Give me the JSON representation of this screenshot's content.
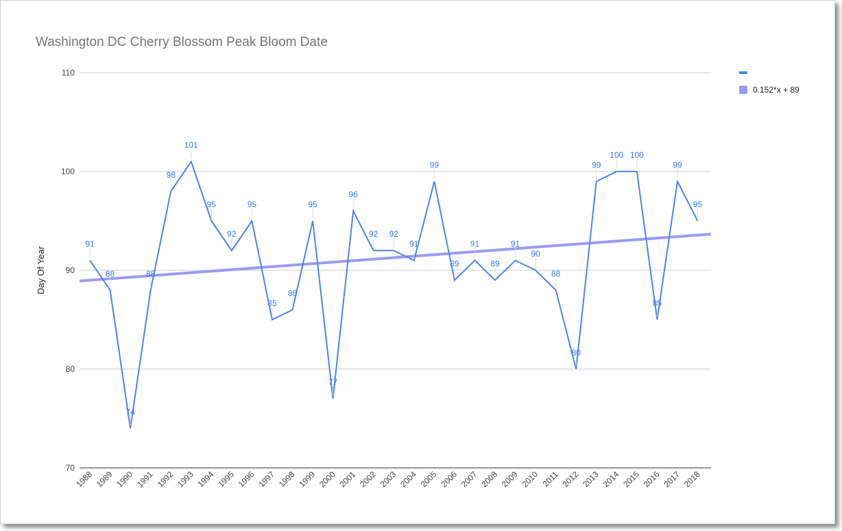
{
  "chart_data": {
    "type": "line",
    "title": "Washington DC Cherry Blossom Peak Bloom Date",
    "xlabel": "",
    "ylabel": "Day Of Year",
    "ylim": [
      70,
      110
    ],
    "yticks": [
      70,
      80,
      90,
      100,
      110
    ],
    "grid": true,
    "legend_position": "right",
    "x": [
      "1988",
      "1989",
      "1990",
      "1991",
      "1992",
      "1993",
      "1994",
      "1995",
      "1996",
      "1997",
      "1998",
      "1999",
      "2000",
      "2001",
      "2002",
      "2003",
      "2004",
      "2005",
      "2006",
      "2007",
      "2008",
      "2009",
      "2010",
      "2011",
      "2012",
      "2013",
      "2014",
      "2015",
      "2016",
      "2017",
      "2018"
    ],
    "series": [
      {
        "name": "",
        "color": "#4a86e8",
        "values": [
          91,
          88,
          74,
          88,
          98,
          101,
          95,
          92,
          95,
          85,
          86,
          95,
          77,
          96,
          92,
          92,
          91,
          99,
          89,
          91,
          89,
          91,
          90,
          88,
          80,
          99,
          100,
          100,
          85,
          99,
          95
        ]
      }
    ],
    "trendline": {
      "name": "0.152*x + 89",
      "color": "#9b9bf5",
      "slope": 0.152,
      "intercept": 89
    }
  }
}
